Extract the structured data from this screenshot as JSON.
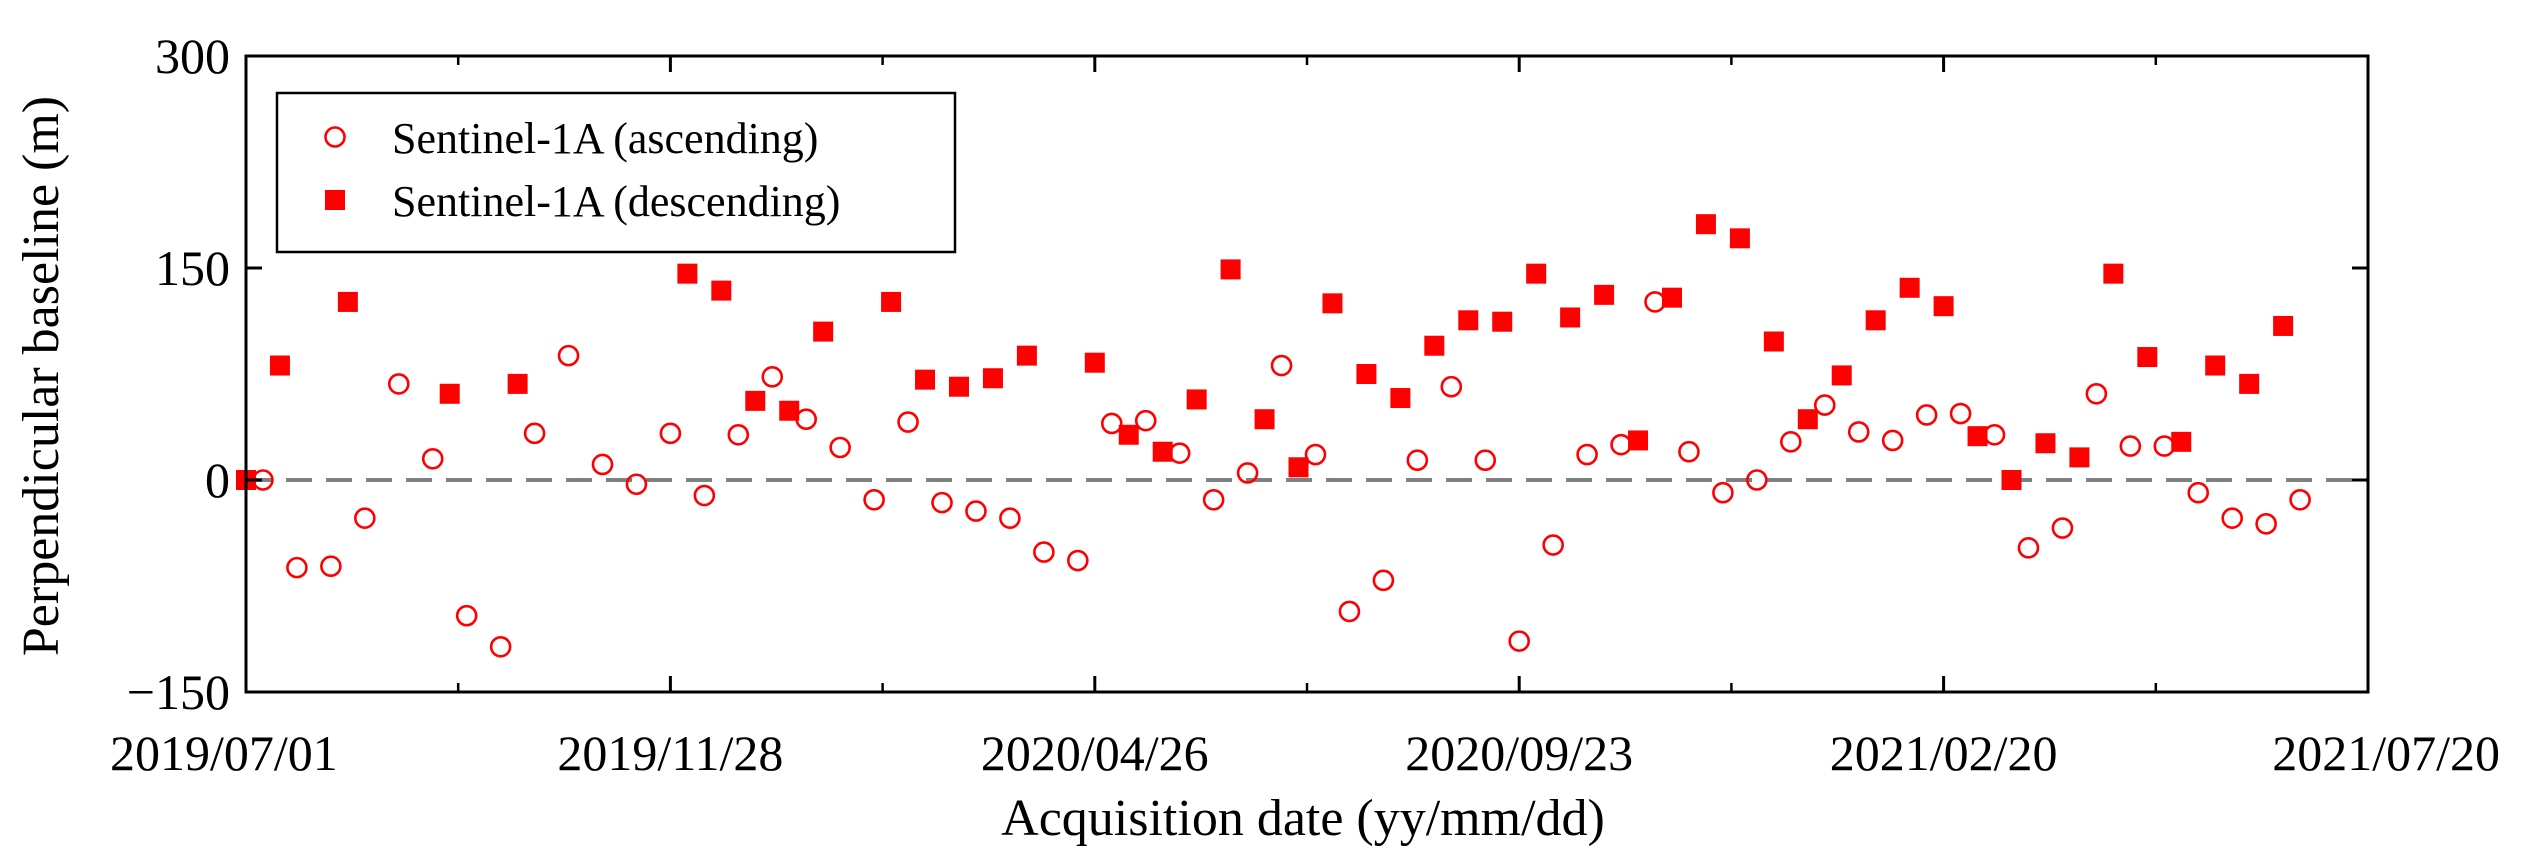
{
  "colors": {
    "marker": "#ff0000",
    "axis": "#000000",
    "baseline": "#808080",
    "background": "#ffffff"
  },
  "chart_data": {
    "type": "scatter",
    "title": "",
    "xlabel": "Acquisition date (yy/mm/dd)",
    "ylabel": "Perpendicular baseline (m)",
    "xlim": [
      "2019-07-01",
      "2021-07-20"
    ],
    "ylim": [
      -150,
      300
    ],
    "yticks": [
      -150,
      0,
      150,
      300
    ],
    "ytick_labels": [
      "−150",
      "0",
      "150",
      "300"
    ],
    "xticks": [
      "2019-07-01",
      "2019-11-28",
      "2020-04-26",
      "2020-09-23",
      "2021-02-20",
      "2021-07-20"
    ],
    "xtick_labels": [
      "2019/07/01",
      "2019/11/28",
      "2020/04/26",
      "2020/09/23",
      "2021/02/20",
      "2021/07/20"
    ],
    "minor_xticks": [
      "2019-09-14",
      "2020-02-11",
      "2020-07-10",
      "2020-12-07",
      "2021-05-06"
    ],
    "reference_line": {
      "y": 0,
      "style": "dashed"
    },
    "grid": false,
    "legend_position": "top-left",
    "series": [
      {
        "name": "Sentinel-1A (ascending)",
        "marker": "open-circle",
        "points": [
          [
            "2019-07-07",
            0
          ],
          [
            "2019-07-19",
            -62
          ],
          [
            "2019-07-31",
            -61
          ],
          [
            "2019-08-12",
            -27
          ],
          [
            "2019-08-24",
            68
          ],
          [
            "2019-09-05",
            15
          ],
          [
            "2019-09-17",
            -96
          ],
          [
            "2019-09-29",
            -118
          ],
          [
            "2019-10-11",
            33
          ],
          [
            "2019-10-23",
            88
          ],
          [
            "2019-11-04",
            11
          ],
          [
            "2019-11-16",
            -3
          ],
          [
            "2019-11-28",
            33
          ],
          [
            "2019-12-10",
            -11
          ],
          [
            "2019-12-22",
            32
          ],
          [
            "2020-01-03",
            73
          ],
          [
            "2020-01-15",
            43
          ],
          [
            "2020-01-27",
            23
          ],
          [
            "2020-02-08",
            -14
          ],
          [
            "2020-02-20",
            41
          ],
          [
            "2020-03-03",
            -16
          ],
          [
            "2020-03-15",
            -22
          ],
          [
            "2020-03-27",
            -27
          ],
          [
            "2020-04-08",
            -51
          ],
          [
            "2020-04-20",
            -57
          ],
          [
            "2020-05-02",
            40
          ],
          [
            "2020-05-14",
            42
          ],
          [
            "2020-05-26",
            19
          ],
          [
            "2020-06-07",
            -14
          ],
          [
            "2020-06-19",
            5
          ],
          [
            "2020-07-01",
            81
          ],
          [
            "2020-07-13",
            18
          ],
          [
            "2020-07-25",
            -93
          ],
          [
            "2020-08-06",
            -71
          ],
          [
            "2020-08-18",
            14
          ],
          [
            "2020-08-30",
            66
          ],
          [
            "2020-09-11",
            14
          ],
          [
            "2020-09-23",
            -114
          ],
          [
            "2020-10-05",
            -46
          ],
          [
            "2020-10-17",
            18
          ],
          [
            "2020-10-29",
            25
          ],
          [
            "2020-11-10",
            126
          ],
          [
            "2020-11-22",
            20
          ],
          [
            "2020-12-04",
            -9
          ],
          [
            "2020-12-16",
            0
          ],
          [
            "2020-12-28",
            27
          ],
          [
            "2021-01-09",
            53
          ],
          [
            "2021-01-21",
            34
          ],
          [
            "2021-02-02",
            28
          ],
          [
            "2021-02-14",
            46
          ],
          [
            "2021-02-26",
            47
          ],
          [
            "2021-03-10",
            32
          ],
          [
            "2021-03-22",
            -48
          ],
          [
            "2021-04-03",
            -34
          ],
          [
            "2021-04-15",
            61
          ],
          [
            "2021-04-27",
            24
          ],
          [
            "2021-05-09",
            24
          ],
          [
            "2021-05-21",
            -9
          ],
          [
            "2021-06-02",
            -27
          ],
          [
            "2021-06-14",
            -31
          ],
          [
            "2021-06-26",
            -14
          ]
        ]
      },
      {
        "name": "Sentinel-1A (descending)",
        "marker": "filled-square",
        "points": [
          [
            "2019-07-01",
            0
          ],
          [
            "2019-07-13",
            81
          ],
          [
            "2019-08-06",
            126
          ],
          [
            "2019-09-11",
            61
          ],
          [
            "2019-10-05",
            68
          ],
          [
            "2019-12-04",
            146
          ],
          [
            "2019-12-16",
            134
          ],
          [
            "2019-12-28",
            56
          ],
          [
            "2020-01-09",
            49
          ],
          [
            "2020-01-21",
            105
          ],
          [
            "2020-02-14",
            126
          ],
          [
            "2020-02-26",
            71
          ],
          [
            "2020-03-09",
            66
          ],
          [
            "2020-03-21",
            72
          ],
          [
            "2020-04-02",
            88
          ],
          [
            "2020-04-26",
            83
          ],
          [
            "2020-05-08",
            32
          ],
          [
            "2020-05-20",
            20
          ],
          [
            "2020-06-01",
            57
          ],
          [
            "2020-06-13",
            149
          ],
          [
            "2020-06-25",
            43
          ],
          [
            "2020-07-07",
            9
          ],
          [
            "2020-07-19",
            125
          ],
          [
            "2020-07-31",
            75
          ],
          [
            "2020-08-12",
            58
          ],
          [
            "2020-08-24",
            95
          ],
          [
            "2020-09-05",
            113
          ],
          [
            "2020-09-17",
            112
          ],
          [
            "2020-09-29",
            146
          ],
          [
            "2020-10-11",
            115
          ],
          [
            "2020-10-23",
            131
          ],
          [
            "2020-11-04",
            28
          ],
          [
            "2020-11-16",
            129
          ],
          [
            "2020-11-28",
            181
          ],
          [
            "2020-12-10",
            171
          ],
          [
            "2020-12-22",
            98
          ],
          [
            "2021-01-03",
            43
          ],
          [
            "2021-01-15",
            74
          ],
          [
            "2021-01-27",
            113
          ],
          [
            "2021-02-08",
            136
          ],
          [
            "2021-02-20",
            123
          ],
          [
            "2021-03-04",
            31
          ],
          [
            "2021-03-16",
            0
          ],
          [
            "2021-03-28",
            26
          ],
          [
            "2021-04-09",
            16
          ],
          [
            "2021-04-21",
            146
          ],
          [
            "2021-05-03",
            87
          ],
          [
            "2021-05-15",
            27
          ],
          [
            "2021-05-27",
            81
          ],
          [
            "2021-06-08",
            68
          ],
          [
            "2021-06-20",
            109
          ]
        ]
      }
    ]
  }
}
